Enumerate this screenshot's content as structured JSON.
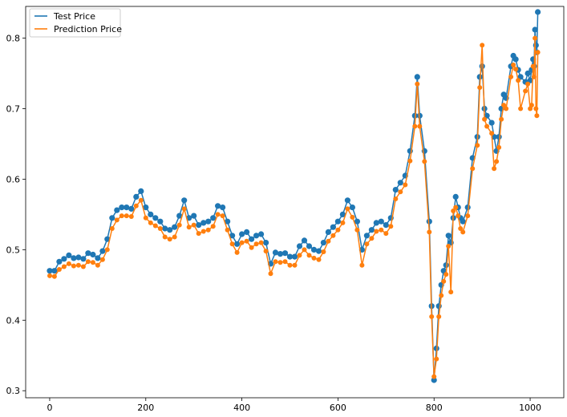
{
  "chart_data": {
    "type": "line",
    "title": "",
    "xlabel": "",
    "ylabel": "",
    "xlim": [
      -50,
      1070
    ],
    "ylim": [
      0.29,
      0.845
    ],
    "xticks": [
      0,
      200,
      400,
      600,
      800,
      1000
    ],
    "yticks": [
      0.3,
      0.4,
      0.5,
      0.6,
      0.7,
      0.8
    ],
    "xtick_labels": [
      "0",
      "200",
      "400",
      "600",
      "800",
      "1000"
    ],
    "ytick_labels": [
      "0.3",
      "0.4",
      "0.5",
      "0.6",
      "0.7",
      "0.8"
    ],
    "grid": false,
    "legend": {
      "placement": "top-left"
    },
    "series": [
      {
        "name": "Test Price",
        "color": "#1f77b4",
        "markers": true,
        "points": [
          [
            0,
            0.47
          ],
          [
            10,
            0.47
          ],
          [
            20,
            0.483
          ],
          [
            30,
            0.487
          ],
          [
            40,
            0.492
          ],
          [
            50,
            0.488
          ],
          [
            60,
            0.489
          ],
          [
            70,
            0.487
          ],
          [
            80,
            0.495
          ],
          [
            90,
            0.493
          ],
          [
            100,
            0.488
          ],
          [
            110,
            0.498
          ],
          [
            120,
            0.515
          ],
          [
            130,
            0.545
          ],
          [
            140,
            0.556
          ],
          [
            150,
            0.56
          ],
          [
            160,
            0.56
          ],
          [
            170,
            0.558
          ],
          [
            180,
            0.575
          ],
          [
            190,
            0.583
          ],
          [
            200,
            0.56
          ],
          [
            210,
            0.55
          ],
          [
            220,
            0.545
          ],
          [
            230,
            0.54
          ],
          [
            240,
            0.53
          ],
          [
            250,
            0.528
          ],
          [
            260,
            0.532
          ],
          [
            270,
            0.548
          ],
          [
            280,
            0.57
          ],
          [
            290,
            0.545
          ],
          [
            300,
            0.548
          ],
          [
            310,
            0.535
          ],
          [
            320,
            0.538
          ],
          [
            330,
            0.54
          ],
          [
            340,
            0.545
          ],
          [
            350,
            0.562
          ],
          [
            360,
            0.56
          ],
          [
            370,
            0.54
          ],
          [
            380,
            0.52
          ],
          [
            390,
            0.508
          ],
          [
            400,
            0.522
          ],
          [
            410,
            0.525
          ],
          [
            420,
            0.515
          ],
          [
            430,
            0.52
          ],
          [
            440,
            0.522
          ],
          [
            450,
            0.51
          ],
          [
            460,
            0.48
          ],
          [
            470,
            0.496
          ],
          [
            480,
            0.494
          ],
          [
            490,
            0.495
          ],
          [
            500,
            0.49
          ],
          [
            510,
            0.49
          ],
          [
            520,
            0.505
          ],
          [
            530,
            0.513
          ],
          [
            540,
            0.505
          ],
          [
            550,
            0.5
          ],
          [
            560,
            0.498
          ],
          [
            570,
            0.51
          ],
          [
            580,
            0.525
          ],
          [
            590,
            0.532
          ],
          [
            600,
            0.54
          ],
          [
            610,
            0.55
          ],
          [
            620,
            0.57
          ],
          [
            630,
            0.56
          ],
          [
            640,
            0.54
          ],
          [
            650,
            0.5
          ],
          [
            660,
            0.52
          ],
          [
            670,
            0.528
          ],
          [
            680,
            0.538
          ],
          [
            690,
            0.54
          ],
          [
            700,
            0.535
          ],
          [
            710,
            0.545
          ],
          [
            720,
            0.585
          ],
          [
            730,
            0.595
          ],
          [
            740,
            0.605
          ],
          [
            750,
            0.64
          ],
          [
            760,
            0.69
          ],
          [
            765,
            0.745
          ],
          [
            770,
            0.69
          ],
          [
            780,
            0.64
          ],
          [
            790,
            0.54
          ],
          [
            795,
            0.42
          ],
          [
            800,
            0.315
          ],
          [
            805,
            0.36
          ],
          [
            810,
            0.42
          ],
          [
            815,
            0.45
          ],
          [
            820,
            0.47
          ],
          [
            825,
            0.478
          ],
          [
            830,
            0.52
          ],
          [
            835,
            0.51
          ],
          [
            840,
            0.545
          ],
          [
            845,
            0.575
          ],
          [
            850,
            0.56
          ],
          [
            855,
            0.545
          ],
          [
            860,
            0.54
          ],
          [
            870,
            0.56
          ],
          [
            880,
            0.63
          ],
          [
            890,
            0.66
          ],
          [
            895,
            0.745
          ],
          [
            900,
            0.76
          ],
          [
            905,
            0.7
          ],
          [
            910,
            0.69
          ],
          [
            920,
            0.68
          ],
          [
            925,
            0.66
          ],
          [
            930,
            0.64
          ],
          [
            935,
            0.66
          ],
          [
            940,
            0.7
          ],
          [
            945,
            0.72
          ],
          [
            950,
            0.715
          ],
          [
            960,
            0.76
          ],
          [
            965,
            0.775
          ],
          [
            970,
            0.77
          ],
          [
            975,
            0.755
          ],
          [
            980,
            0.745
          ],
          [
            990,
            0.738
          ],
          [
            995,
            0.75
          ],
          [
            1000,
            0.74
          ],
          [
            1003,
            0.755
          ],
          [
            1006,
            0.77
          ],
          [
            1008,
            0.76
          ],
          [
            1010,
            0.812
          ],
          [
            1012,
            0.79
          ],
          [
            1014,
            0.78
          ],
          [
            1016,
            0.837
          ]
        ]
      },
      {
        "name": "Prediction Price",
        "color": "#ff7f0e",
        "markers": true,
        "points": [
          [
            0,
            0.463
          ],
          [
            10,
            0.462
          ],
          [
            20,
            0.472
          ],
          [
            30,
            0.476
          ],
          [
            40,
            0.48
          ],
          [
            50,
            0.477
          ],
          [
            60,
            0.478
          ],
          [
            70,
            0.476
          ],
          [
            80,
            0.483
          ],
          [
            90,
            0.482
          ],
          [
            100,
            0.478
          ],
          [
            110,
            0.486
          ],
          [
            120,
            0.5
          ],
          [
            130,
            0.53
          ],
          [
            140,
            0.542
          ],
          [
            150,
            0.548
          ],
          [
            160,
            0.548
          ],
          [
            170,
            0.547
          ],
          [
            180,
            0.562
          ],
          [
            190,
            0.57
          ],
          [
            200,
            0.545
          ],
          [
            210,
            0.538
          ],
          [
            220,
            0.534
          ],
          [
            230,
            0.53
          ],
          [
            240,
            0.518
          ],
          [
            250,
            0.515
          ],
          [
            260,
            0.518
          ],
          [
            270,
            0.535
          ],
          [
            280,
            0.558
          ],
          [
            290,
            0.532
          ],
          [
            300,
            0.535
          ],
          [
            310,
            0.523
          ],
          [
            320,
            0.526
          ],
          [
            330,
            0.528
          ],
          [
            340,
            0.533
          ],
          [
            350,
            0.55
          ],
          [
            360,
            0.548
          ],
          [
            370,
            0.528
          ],
          [
            380,
            0.508
          ],
          [
            390,
            0.496
          ],
          [
            400,
            0.51
          ],
          [
            410,
            0.512
          ],
          [
            420,
            0.503
          ],
          [
            430,
            0.508
          ],
          [
            440,
            0.51
          ],
          [
            450,
            0.498
          ],
          [
            460,
            0.466
          ],
          [
            470,
            0.483
          ],
          [
            480,
            0.482
          ],
          [
            490,
            0.483
          ],
          [
            500,
            0.478
          ],
          [
            510,
            0.478
          ],
          [
            520,
            0.492
          ],
          [
            530,
            0.5
          ],
          [
            540,
            0.492
          ],
          [
            550,
            0.488
          ],
          [
            560,
            0.486
          ],
          [
            570,
            0.497
          ],
          [
            580,
            0.512
          ],
          [
            590,
            0.52
          ],
          [
            600,
            0.528
          ],
          [
            610,
            0.538
          ],
          [
            620,
            0.558
          ],
          [
            630,
            0.546
          ],
          [
            640,
            0.528
          ],
          [
            650,
            0.478
          ],
          [
            660,
            0.508
          ],
          [
            670,
            0.516
          ],
          [
            680,
            0.526
          ],
          [
            690,
            0.528
          ],
          [
            700,
            0.523
          ],
          [
            710,
            0.533
          ],
          [
            720,
            0.572
          ],
          [
            730,
            0.582
          ],
          [
            740,
            0.592
          ],
          [
            750,
            0.626
          ],
          [
            760,
            0.675
          ],
          [
            765,
            0.735
          ],
          [
            770,
            0.675
          ],
          [
            780,
            0.625
          ],
          [
            790,
            0.525
          ],
          [
            795,
            0.405
          ],
          [
            800,
            0.32
          ],
          [
            805,
            0.345
          ],
          [
            810,
            0.405
          ],
          [
            815,
            0.435
          ],
          [
            820,
            0.455
          ],
          [
            825,
            0.465
          ],
          [
            830,
            0.505
          ],
          [
            835,
            0.44
          ],
          [
            840,
            0.555
          ],
          [
            845,
            0.56
          ],
          [
            850,
            0.548
          ],
          [
            855,
            0.53
          ],
          [
            860,
            0.525
          ],
          [
            870,
            0.548
          ],
          [
            880,
            0.615
          ],
          [
            890,
            0.648
          ],
          [
            895,
            0.73
          ],
          [
            900,
            0.79
          ],
          [
            905,
            0.685
          ],
          [
            910,
            0.675
          ],
          [
            920,
            0.665
          ],
          [
            925,
            0.615
          ],
          [
            930,
            0.625
          ],
          [
            935,
            0.645
          ],
          [
            940,
            0.685
          ],
          [
            945,
            0.705
          ],
          [
            950,
            0.7
          ],
          [
            960,
            0.745
          ],
          [
            965,
            0.762
          ],
          [
            970,
            0.756
          ],
          [
            975,
            0.74
          ],
          [
            980,
            0.7
          ],
          [
            990,
            0.725
          ],
          [
            995,
            0.735
          ],
          [
            1000,
            0.7
          ],
          [
            1003,
            0.705
          ],
          [
            1006,
            0.76
          ],
          [
            1008,
            0.745
          ],
          [
            1010,
            0.8
          ],
          [
            1012,
            0.7
          ],
          [
            1014,
            0.69
          ],
          [
            1016,
            0.78
          ]
        ]
      }
    ]
  }
}
